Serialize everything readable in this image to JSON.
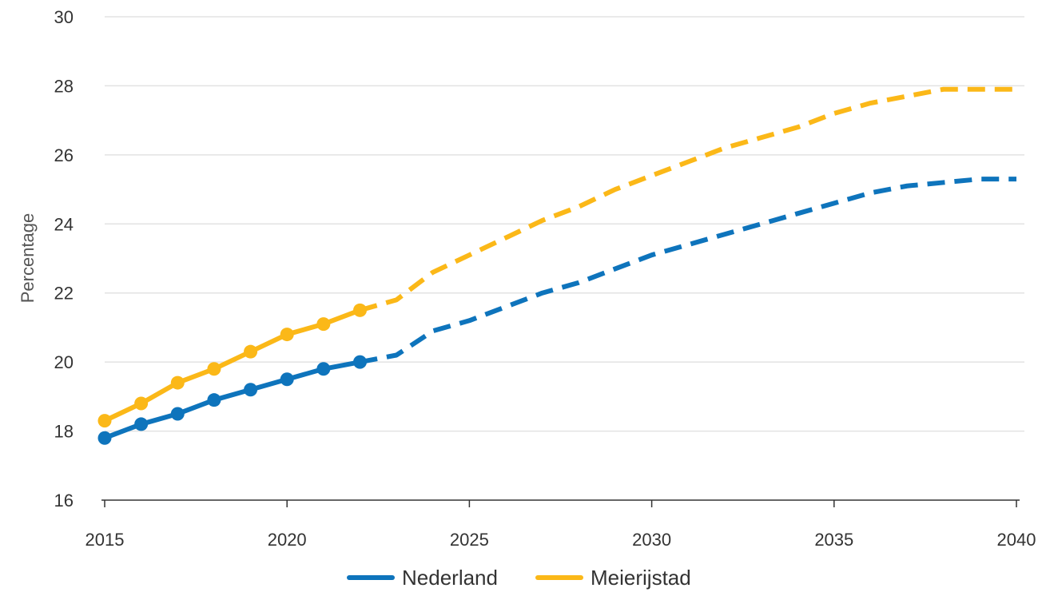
{
  "chart_data": {
    "type": "line",
    "title": "",
    "xlabel": "",
    "ylabel": "Percentage",
    "xlim": [
      2015,
      2040
    ],
    "ylim": [
      16,
      30
    ],
    "x_ticks": [
      2015,
      2020,
      2025,
      2030,
      2035,
      2040
    ],
    "y_ticks": [
      16,
      18,
      20,
      22,
      24,
      26,
      28,
      30
    ],
    "grid": "horizontal",
    "legend_position": "bottom",
    "series": [
      {
        "name": "Nederland",
        "color": "#0e74bc",
        "observed": {
          "x": [
            2015,
            2016,
            2017,
            2018,
            2019,
            2020,
            2021,
            2022
          ],
          "y": [
            17.8,
            18.2,
            18.5,
            18.9,
            19.2,
            19.5,
            19.8,
            20.0
          ]
        },
        "forecast": {
          "x": [
            2022,
            2023,
            2024,
            2025,
            2026,
            2027,
            2028,
            2029,
            2030,
            2031,
            2032,
            2033,
            2034,
            2035,
            2036,
            2037,
            2038,
            2039,
            2040
          ],
          "y": [
            20.0,
            20.2,
            20.9,
            21.2,
            21.6,
            22.0,
            22.3,
            22.7,
            23.1,
            23.4,
            23.7,
            24.0,
            24.3,
            24.6,
            24.9,
            25.1,
            25.2,
            25.3,
            25.3
          ]
        }
      },
      {
        "name": "Meierijstad",
        "color": "#fbb818",
        "observed": {
          "x": [
            2015,
            2016,
            2017,
            2018,
            2019,
            2020,
            2021,
            2022
          ],
          "y": [
            18.3,
            18.8,
            19.4,
            19.8,
            20.3,
            20.8,
            21.1,
            21.5
          ]
        },
        "forecast": {
          "x": [
            2022,
            2023,
            2024,
            2025,
            2026,
            2027,
            2028,
            2029,
            2030,
            2031,
            2032,
            2033,
            2034,
            2035,
            2036,
            2037,
            2038,
            2039,
            2040
          ],
          "y": [
            21.5,
            21.8,
            22.6,
            23.1,
            23.6,
            24.1,
            24.5,
            25.0,
            25.4,
            25.8,
            26.2,
            26.5,
            26.8,
            27.2,
            27.5,
            27.7,
            27.9,
            27.9,
            27.9
          ]
        }
      }
    ]
  }
}
